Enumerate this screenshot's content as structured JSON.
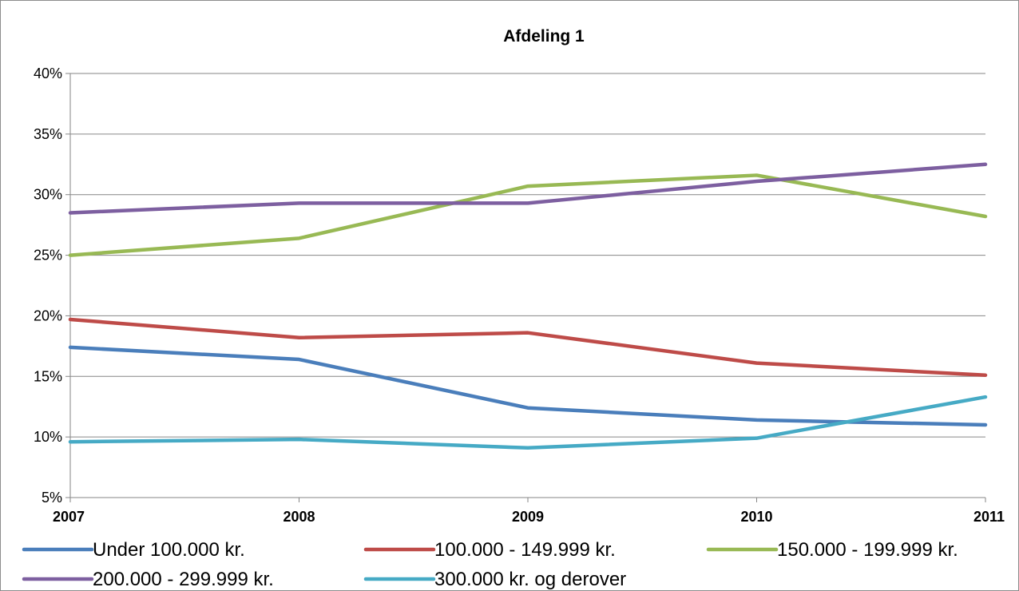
{
  "chart_data": {
    "type": "line",
    "title": "Afdeling 1",
    "xlabel": "",
    "ylabel": "",
    "categories": [
      "2007",
      "2008",
      "2009",
      "2010",
      "2011"
    ],
    "y_ticks": [
      "5%",
      "10%",
      "15%",
      "20%",
      "25%",
      "30%",
      "35%",
      "40%"
    ],
    "ylim": [
      5,
      40
    ],
    "grid": true,
    "legend_position": "bottom",
    "series": [
      {
        "name": "Under 100.000 kr.",
        "color": "#4a7ebb",
        "values": [
          17.4,
          16.4,
          12.4,
          11.4,
          11.0
        ]
      },
      {
        "name": "100.000 - 149.999 kr.",
        "color": "#be4b48",
        "values": [
          19.7,
          18.2,
          18.6,
          16.1,
          15.1
        ]
      },
      {
        "name": "150.000 - 199.999 kr.",
        "color": "#98b954",
        "values": [
          25.0,
          26.4,
          30.7,
          31.6,
          28.2
        ]
      },
      {
        "name": "200.000 - 299.999 kr.",
        "color": "#7d5fa0",
        "values": [
          28.5,
          29.3,
          29.3,
          31.1,
          32.5
        ]
      },
      {
        "name": "300.000 kr. og derover",
        "color": "#46aac5",
        "values": [
          9.6,
          9.8,
          9.1,
          9.9,
          13.3
        ]
      }
    ]
  }
}
